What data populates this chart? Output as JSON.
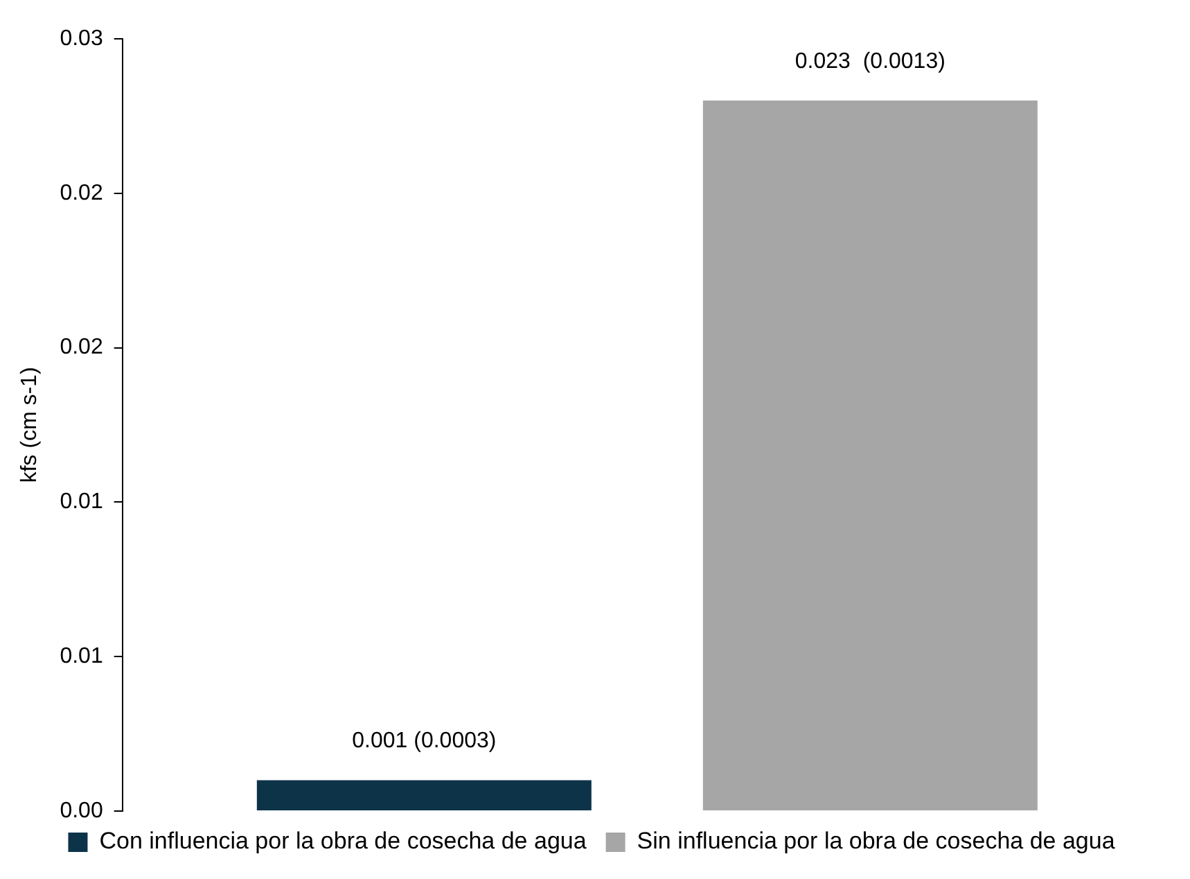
{
  "chart_data": {
    "type": "bar",
    "ylabel": "kfs (cm s-1)",
    "categories": [
      null
    ],
    "series": [
      {
        "name": "Con influencia por la obra de cosecha de agua",
        "color": "#0d3349",
        "values": [
          0.001
        ],
        "value_labels": [
          "0.001 (0.0003)"
        ]
      },
      {
        "name": "Sin influencia por la obra de cosecha de agua",
        "color": "#a6a6a6",
        "values": [
          0.023
        ],
        "value_labels": [
          "0.023  (0.0013)"
        ]
      }
    ],
    "ylim": [
      0,
      0.025
    ],
    "yticks": [
      {
        "value": 0,
        "label": "0.00"
      },
      {
        "value": 0.005,
        "label": "0.01"
      },
      {
        "value": 0.01,
        "label": "0.01"
      },
      {
        "value": 0.015,
        "label": "0.02"
      },
      {
        "value": 0.02,
        "label": "0.02"
      },
      {
        "value": 0.025,
        "label": "0.03"
      }
    ],
    "grid": false,
    "legend": "bottom"
  }
}
